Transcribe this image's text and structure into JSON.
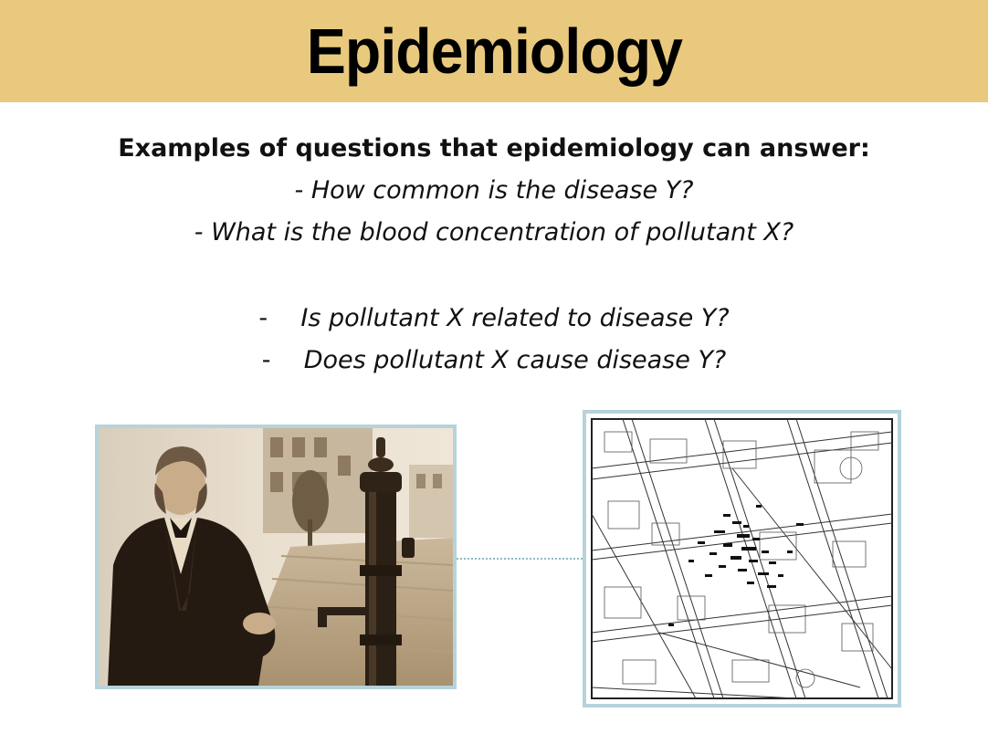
{
  "slide": {
    "title": "Epidemiology",
    "heading": "Examples of questions that epidemiology can answer:",
    "descriptive_questions": [
      "- How common is the disease Y?",
      "- What is the blood concentration of pollutant X?"
    ],
    "analytic_questions": [
      {
        "bullet": "-",
        "text": "Is pollutant X related to disease Y?"
      },
      {
        "bullet": "-",
        "text": "Does pollutant X cause disease Y?"
      }
    ]
  },
  "colors": {
    "title_bar": "#e8c97e",
    "frame_border": "#b6d3dc",
    "connector": "#8fb9c7",
    "sepia_light": "#efe4d2",
    "sepia_dark": "#3a2a1c"
  },
  "images": {
    "left": "sepia-portrait-with-water-pump",
    "right": "street-map-with-case-marks"
  }
}
